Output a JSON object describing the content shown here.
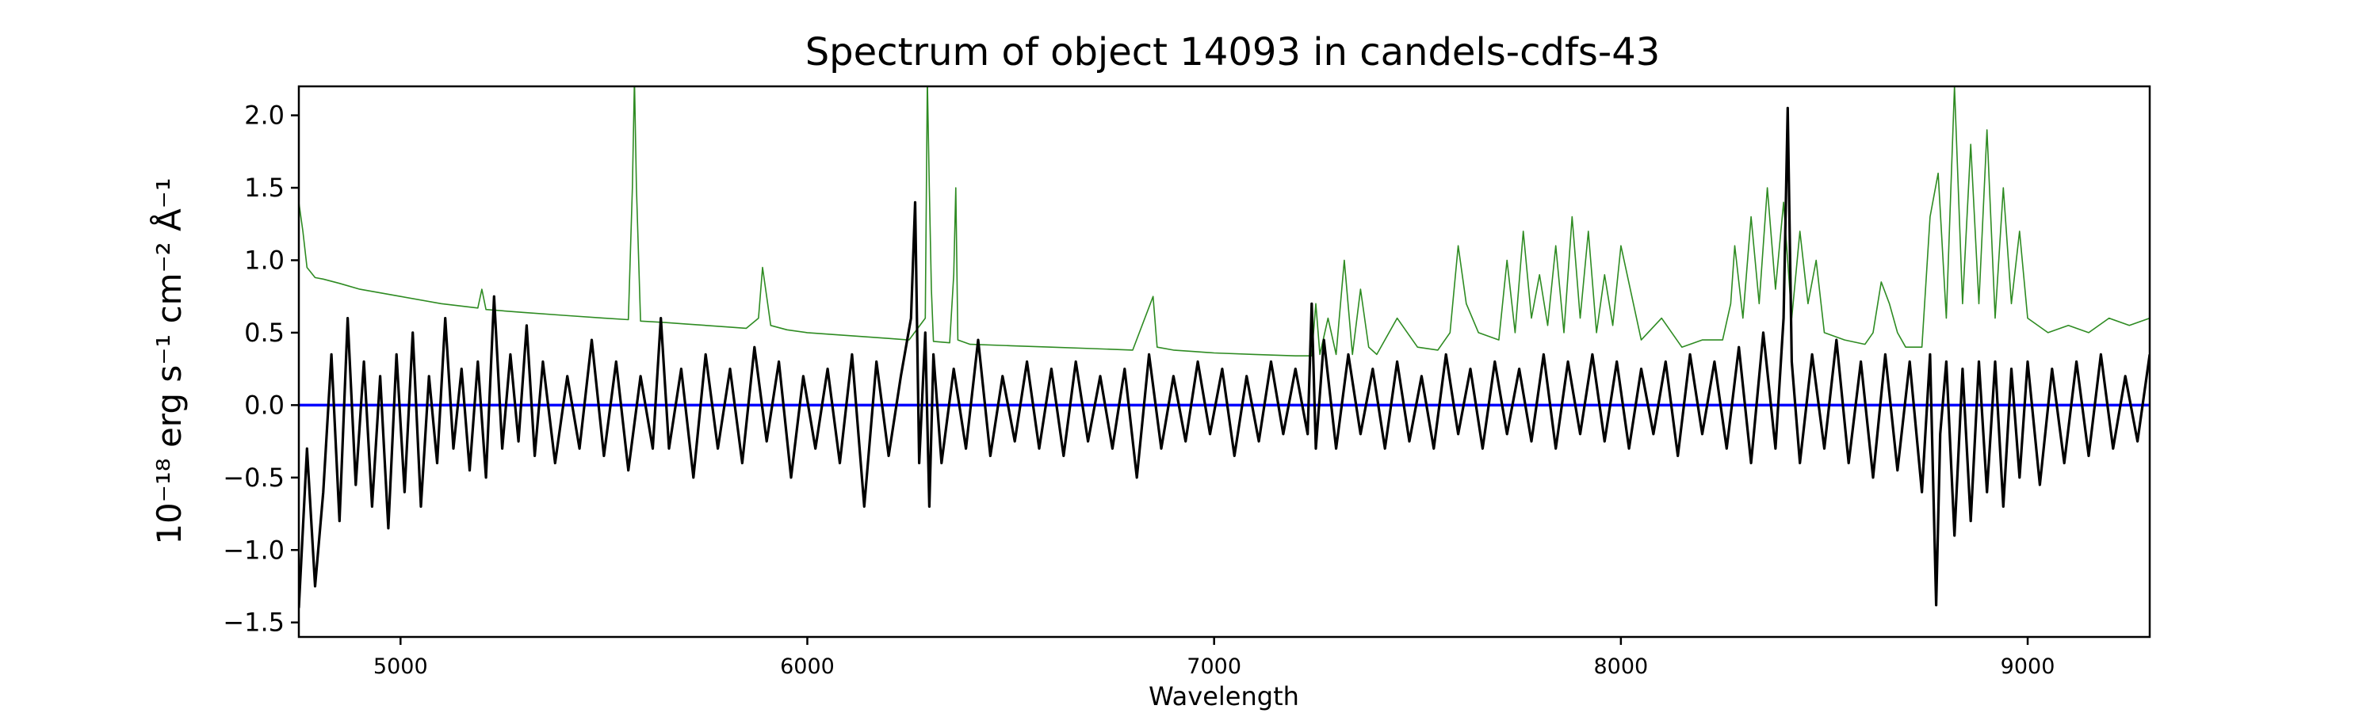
{
  "colors": {
    "flux": "#000000",
    "error": "#2e8b22",
    "zero": "#0000ff",
    "axes": "#000000",
    "background": "#ffffff"
  },
  "chart_data": {
    "type": "line",
    "title": "Spectrum of object 14093 in candels-cdfs-43",
    "xlabel": "Wavelength",
    "ylabel": "10⁻¹⁸ erg s⁻¹ cm⁻² Å⁻¹",
    "xlim": [
      4750,
      9300
    ],
    "ylim": [
      -1.6,
      2.2
    ],
    "x_ticks": [
      5000,
      6000,
      7000,
      8000,
      9000
    ],
    "x_tick_labels": [
      "5000",
      "6000",
      "7000",
      "8000",
      "9000"
    ],
    "y_ticks": [
      -1.5,
      -1.0,
      -0.5,
      0.0,
      0.5,
      1.0,
      1.5,
      2.0
    ],
    "y_tick_labels": [
      "−1.5",
      "−1.0",
      "−0.5",
      "0.0",
      "0.5",
      "1.0",
      "1.5",
      "2.0"
    ],
    "grid": false,
    "legend": "none",
    "series": [
      {
        "role": "flux",
        "color": "#000000",
        "x": [
          4750,
          4770,
          4790,
          4810,
          4830,
          4850,
          4870,
          4890,
          4910,
          4930,
          4950,
          4970,
          4990,
          5010,
          5030,
          5050,
          5070,
          5090,
          5110,
          5130,
          5150,
          5170,
          5190,
          5210,
          5230,
          5250,
          5270,
          5290,
          5310,
          5330,
          5350,
          5380,
          5410,
          5440,
          5470,
          5500,
          5530,
          5560,
          5590,
          5620,
          5640,
          5660,
          5690,
          5720,
          5750,
          5780,
          5810,
          5840,
          5870,
          5900,
          5930,
          5960,
          5990,
          6020,
          6050,
          6080,
          6110,
          6140,
          6170,
          6200,
          6230,
          6255,
          6265,
          6275,
          6290,
          6300,
          6310,
          6330,
          6360,
          6390,
          6420,
          6450,
          6480,
          6510,
          6540,
          6570,
          6600,
          6630,
          6660,
          6690,
          6720,
          6750,
          6780,
          6810,
          6840,
          6870,
          6900,
          6930,
          6960,
          6990,
          7020,
          7050,
          7080,
          7110,
          7140,
          7170,
          7200,
          7230,
          7240,
          7250,
          7270,
          7300,
          7330,
          7360,
          7390,
          7420,
          7450,
          7480,
          7510,
          7540,
          7570,
          7600,
          7630,
          7660,
          7690,
          7720,
          7750,
          7780,
          7810,
          7840,
          7870,
          7900,
          7930,
          7960,
          7990,
          8020,
          8050,
          8080,
          8110,
          8140,
          8170,
          8200,
          8230,
          8260,
          8290,
          8320,
          8350,
          8380,
          8400,
          8410,
          8420,
          8440,
          8470,
          8500,
          8530,
          8560,
          8590,
          8620,
          8650,
          8680,
          8710,
          8740,
          8760,
          8775,
          8785,
          8800,
          8820,
          8840,
          8860,
          8880,
          8900,
          8920,
          8940,
          8960,
          8980,
          9000,
          9030,
          9060,
          9090,
          9120,
          9150,
          9180,
          9210,
          9240,
          9270,
          9300
        ],
        "values": [
          -1.4,
          -0.3,
          -1.25,
          -0.6,
          0.35,
          -0.8,
          0.6,
          -0.55,
          0.3,
          -0.7,
          0.2,
          -0.85,
          0.35,
          -0.6,
          0.5,
          -0.7,
          0.2,
          -0.4,
          0.6,
          -0.3,
          0.25,
          -0.45,
          0.3,
          -0.5,
          0.75,
          -0.3,
          0.35,
          -0.25,
          0.55,
          -0.35,
          0.3,
          -0.4,
          0.2,
          -0.3,
          0.45,
          -0.35,
          0.3,
          -0.45,
          0.2,
          -0.3,
          0.6,
          -0.3,
          0.25,
          -0.5,
          0.35,
          -0.3,
          0.25,
          -0.4,
          0.4,
          -0.25,
          0.3,
          -0.5,
          0.2,
          -0.3,
          0.25,
          -0.4,
          0.35,
          -0.7,
          0.3,
          -0.35,
          0.2,
          0.6,
          1.4,
          -0.4,
          0.5,
          -0.7,
          0.35,
          -0.4,
          0.25,
          -0.3,
          0.45,
          -0.35,
          0.2,
          -0.25,
          0.3,
          -0.3,
          0.25,
          -0.35,
          0.3,
          -0.25,
          0.2,
          -0.3,
          0.25,
          -0.5,
          0.35,
          -0.3,
          0.2,
          -0.25,
          0.3,
          -0.2,
          0.25,
          -0.35,
          0.2,
          -0.25,
          0.3,
          -0.2,
          0.25,
          -0.2,
          0.7,
          -0.3,
          0.45,
          -0.3,
          0.35,
          -0.2,
          0.25,
          -0.3,
          0.3,
          -0.25,
          0.2,
          -0.3,
          0.35,
          -0.2,
          0.25,
          -0.3,
          0.3,
          -0.2,
          0.25,
          -0.25,
          0.35,
          -0.3,
          0.3,
          -0.2,
          0.35,
          -0.25,
          0.3,
          -0.3,
          0.25,
          -0.2,
          0.3,
          -0.35,
          0.35,
          -0.2,
          0.3,
          -0.3,
          0.4,
          -0.4,
          0.5,
          -0.3,
          0.6,
          2.05,
          0.3,
          -0.4,
          0.35,
          -0.3,
          0.45,
          -0.4,
          0.3,
          -0.5,
          0.35,
          -0.45,
          0.3,
          -0.6,
          0.35,
          -1.38,
          -0.2,
          0.3,
          -0.9,
          0.25,
          -0.8,
          0.3,
          -0.6,
          0.3,
          -0.7,
          0.25,
          -0.5,
          0.3,
          -0.55,
          0.25,
          -0.4,
          0.3,
          -0.35,
          0.35,
          -0.3,
          0.2,
          -0.25,
          0.35
        ]
      },
      {
        "role": "error",
        "color": "#2e8b22",
        "x": [
          4750,
          4760,
          4770,
          4790,
          4810,
          4850,
          4900,
          5000,
          5100,
          5190,
          5200,
          5210,
          5300,
          5400,
          5500,
          5560,
          5570,
          5575,
          5580,
          5590,
          5650,
          5700,
          5800,
          5850,
          5880,
          5890,
          5900,
          5910,
          5950,
          6000,
          6100,
          6200,
          6250,
          6290,
          6295,
          6300,
          6305,
          6310,
          6350,
          6360,
          6365,
          6370,
          6400,
          6500,
          6600,
          6700,
          6800,
          6850,
          6860,
          6900,
          6950,
          7000,
          7100,
          7200,
          7240,
          7250,
          7260,
          7280,
          7300,
          7320,
          7340,
          7360,
          7380,
          7400,
          7450,
          7500,
          7550,
          7580,
          7600,
          7620,
          7650,
          7700,
          7720,
          7740,
          7760,
          7780,
          7800,
          7820,
          7840,
          7860,
          7880,
          7900,
          7920,
          7940,
          7960,
          7980,
          8000,
          8050,
          8100,
          8150,
          8200,
          8250,
          8270,
          8280,
          8300,
          8320,
          8340,
          8360,
          8380,
          8400,
          8420,
          8440,
          8460,
          8480,
          8500,
          8550,
          8600,
          8620,
          8640,
          8660,
          8680,
          8700,
          8740,
          8760,
          8780,
          8800,
          8820,
          8840,
          8860,
          8880,
          8900,
          8920,
          8940,
          8960,
          8980,
          9000,
          9050,
          9100,
          9150,
          9200,
          9250,
          9300
        ],
        "values": [
          1.4,
          1.2,
          0.95,
          0.88,
          0.87,
          0.84,
          0.8,
          0.75,
          0.7,
          0.67,
          0.8,
          0.66,
          0.64,
          0.62,
          0.6,
          0.59,
          1.5,
          2.25,
          1.5,
          0.58,
          0.57,
          0.56,
          0.54,
          0.53,
          0.6,
          0.95,
          0.75,
          0.55,
          0.52,
          0.5,
          0.48,
          0.46,
          0.45,
          0.6,
          2.25,
          1.5,
          0.8,
          0.44,
          0.43,
          0.9,
          1.5,
          0.45,
          0.42,
          0.41,
          0.4,
          0.39,
          0.38,
          0.75,
          0.4,
          0.38,
          0.37,
          0.36,
          0.35,
          0.34,
          0.34,
          0.7,
          0.35,
          0.6,
          0.35,
          1.0,
          0.35,
          0.8,
          0.4,
          0.35,
          0.6,
          0.4,
          0.38,
          0.5,
          1.1,
          0.7,
          0.5,
          0.45,
          1.0,
          0.5,
          1.2,
          0.6,
          0.9,
          0.55,
          1.1,
          0.5,
          1.3,
          0.6,
          1.2,
          0.5,
          0.9,
          0.55,
          1.1,
          0.45,
          0.6,
          0.4,
          0.45,
          0.45,
          0.7,
          1.1,
          0.6,
          1.3,
          0.7,
          1.5,
          0.8,
          1.4,
          0.6,
          1.2,
          0.7,
          1.0,
          0.5,
          0.45,
          0.42,
          0.5,
          0.85,
          0.7,
          0.5,
          0.4,
          0.4,
          1.3,
          1.6,
          0.6,
          2.2,
          0.7,
          1.8,
          0.7,
          1.9,
          0.6,
          1.5,
          0.7,
          1.2,
          0.6,
          0.5,
          0.55,
          0.5,
          0.6,
          0.55,
          0.6
        ]
      },
      {
        "role": "zero",
        "color": "#0000ff",
        "x": [
          4750,
          9300
        ],
        "values": [
          0.0,
          0.0
        ]
      }
    ]
  }
}
